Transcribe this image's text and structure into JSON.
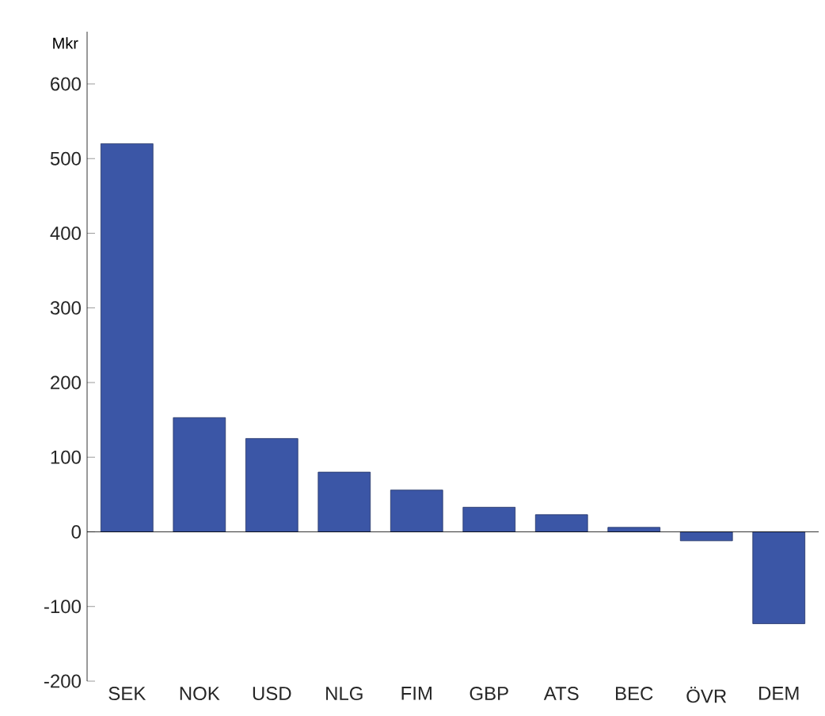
{
  "chart_data": {
    "type": "bar",
    "ylabel": "Mkr",
    "categories": [
      "SEK",
      "NOK",
      "USD",
      "NLG",
      "FIM",
      "GBP",
      "ATS",
      "BEC",
      "ÖVR",
      "DEM"
    ],
    "values": [
      520,
      153,
      125,
      80,
      56,
      33,
      23,
      6,
      -12,
      -123
    ],
    "color": "#3b56a6",
    "ylim": [
      -200,
      670
    ],
    "yticks": [
      -200,
      -100,
      0,
      100,
      200,
      300,
      400,
      500,
      600
    ],
    "line_style": "solid"
  }
}
